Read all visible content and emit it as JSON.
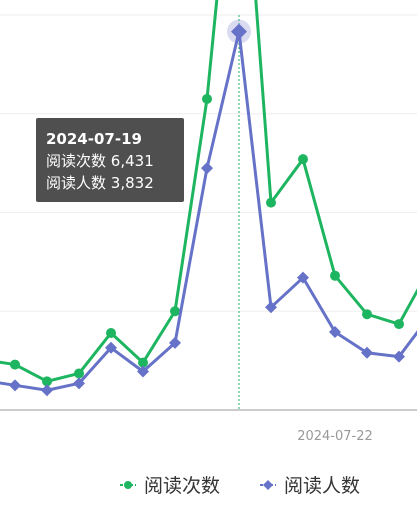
{
  "chart_data": {
    "type": "line",
    "x_tick_labels": [
      "2024-07-22"
    ],
    "ylim": [
      0,
      4000
    ],
    "grid": true,
    "legend_position": "bottom",
    "series": [
      {
        "name": "阅读次数",
        "color": "#1db560",
        "marker": "circle",
        "values": [
          510,
          460,
          290,
          370,
          780,
          480,
          1000,
          3150,
          6431,
          2100,
          2540,
          1360,
          970,
          870,
          1460,
          1480
        ]
      },
      {
        "name": "阅读人数",
        "color": "#6672c8",
        "marker": "diamond",
        "values": [
          300,
          250,
          200,
          270,
          630,
          390,
          680,
          2450,
          3832,
          1040,
          1340,
          790,
          580,
          540,
          970,
          950
        ]
      }
    ],
    "highlight_index": 8,
    "tooltip": {
      "date": "2024-07-19",
      "rows": [
        {
          "label": "阅读次数",
          "value": "6,431"
        },
        {
          "label": "阅读人数",
          "value": "3,832"
        }
      ]
    }
  }
}
